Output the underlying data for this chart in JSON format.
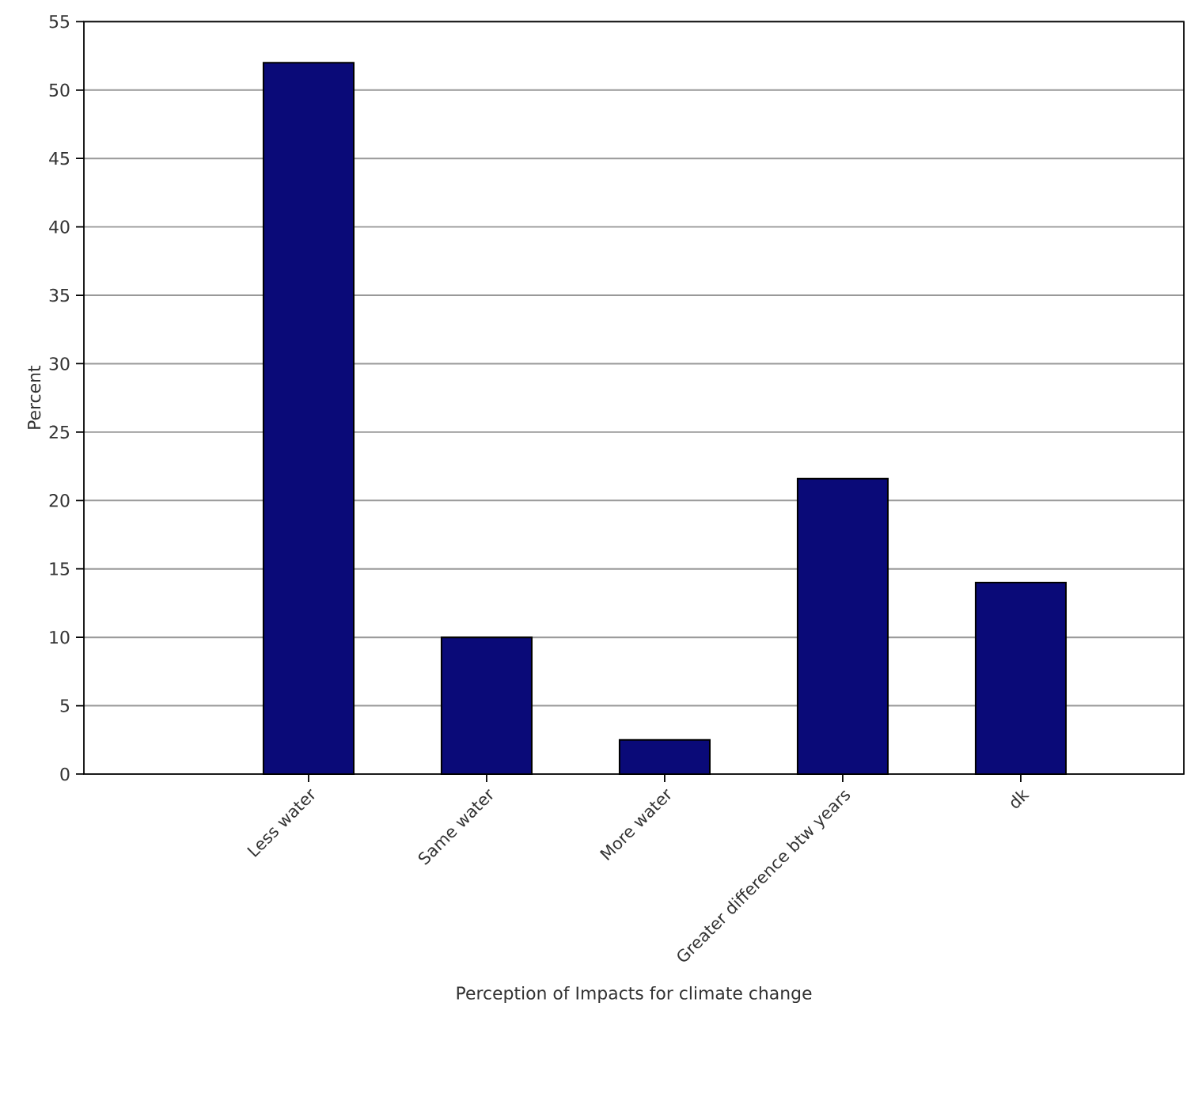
{
  "chart_data": {
    "type": "bar",
    "xlabel": "Perception of Impacts for climate change",
    "ylabel": "Percent",
    "categories": [
      "Less water",
      "Same water",
      "More water",
      "Greater difference btw years",
      "dk"
    ],
    "values": [
      52,
      10,
      2.5,
      21.6,
      14
    ],
    "color": "#0a0a78",
    "ylim": [
      0,
      55
    ],
    "yticks": [
      0,
      5,
      10,
      15,
      20,
      25,
      30,
      35,
      40,
      45,
      50,
      55
    ],
    "grid": "y"
  }
}
